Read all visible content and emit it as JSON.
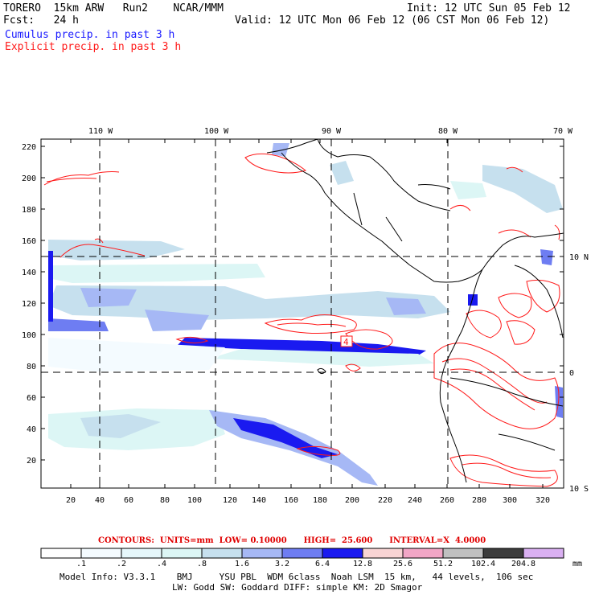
{
  "header": {
    "model": "TORERO  15km ARW   Run2    NCAR/MMM",
    "init": "Init: 12 UTC Sun 05 Feb 12",
    "fcst": "Fcst:   24 h",
    "valid": "Valid: 12 UTC Mon 06 Feb 12 (06 CST Mon 06 Feb 12)",
    "line_cumulus": "Cumulus precip. in past 3 h",
    "line_explicit": "Explicit precip. in past 3 h"
  },
  "map": {
    "top_lon_labels": [
      "110 W",
      "100 W",
      "90 W",
      "80 W",
      "70 W"
    ],
    "right_lat_labels": [
      "10 N",
      "0",
      "10 S"
    ],
    "y_ticks": [
      "220",
      "200",
      "180",
      "160",
      "140",
      "120",
      "100",
      "80",
      "60",
      "40",
      "20"
    ],
    "x_ticks": [
      "20",
      "40",
      "60",
      "80",
      "100",
      "120",
      "140",
      "160",
      "180",
      "200",
      "220",
      "240",
      "260",
      "280",
      "300",
      "320"
    ],
    "contour_label": "4"
  },
  "contours_line": {
    "label_contours": "CONTOURS:",
    "label_units": "UNITS=mm",
    "label_low": "LOW=",
    "low": "0.10000",
    "label_high": "HIGH=",
    "high": "25.600",
    "label_interval": "INTERVAL=X",
    "interval": "4.0000"
  },
  "colorbar": {
    "labels": [
      ".1",
      ".2",
      ".4",
      ".8",
      "1.6",
      "3.2",
      "6.4",
      "12.8",
      "25.6",
      "51.2",
      "102.4",
      "204.8"
    ],
    "unit": "mm",
    "colors": [
      "#ffffff",
      "#f4fbff",
      "#e6f7fb",
      "#dcf6f5",
      "#c6e0ee",
      "#a6b8f5",
      "#6e7df2",
      "#1a1af0",
      "#f8d4d4",
      "#f2a6c6",
      "#c0c0c0",
      "#3c3c3c",
      "#dab0f2"
    ]
  },
  "footer": {
    "line1": "Model Info: V3.3.1    BMJ     YSU PBL  WDM 6class  Noah LSM  15 km,   44 levels,  106 sec",
    "line2": "LW: Godd SW: Goddard DIFF: simple KM: 2D Smagor"
  }
}
